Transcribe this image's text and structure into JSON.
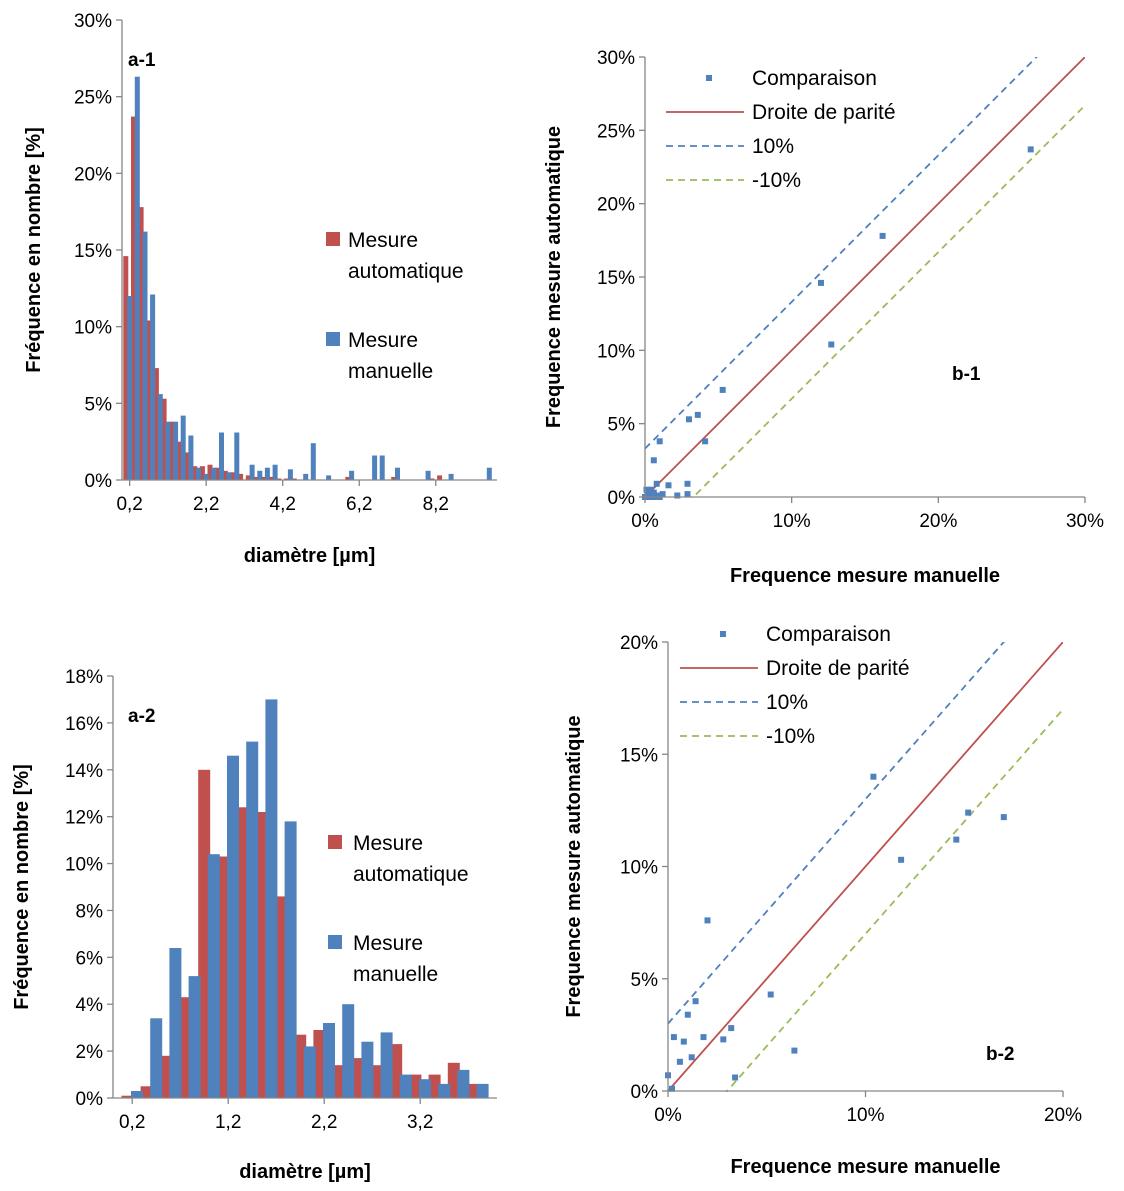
{
  "colors": {
    "automatic": "#c0504d",
    "manual": "#4f81bd",
    "parity": "#c0504d",
    "plus10": "#4f81bd",
    "minus10": "#9bbb59"
  },
  "chart_data": [
    {
      "id": "a-1",
      "type": "bar",
      "panel_label": "a-1",
      "xlabel": "diamètre [µm]",
      "ylabel": "Fréquence en nombre [%]",
      "ylim": [
        0,
        30
      ],
      "xlim": [
        0,
        9.8
      ],
      "xticks": [
        "0,2",
        "2,2",
        "4,2",
        "6,2",
        "8,2"
      ],
      "xtick_values": [
        0.2,
        2.2,
        4.2,
        6.2,
        8.2
      ],
      "yticks": [
        "0%",
        "5%",
        "10%",
        "15%",
        "20%",
        "25%",
        "30%"
      ],
      "ytick_values": [
        0,
        5,
        10,
        15,
        20,
        25,
        30
      ],
      "legend_position": "center-right",
      "series": [
        {
          "name": "Mesure automatique",
          "x": [
            0.1,
            0.3,
            0.5,
            0.7,
            0.9,
            1.1,
            1.3,
            1.5,
            1.7,
            1.9,
            2.1,
            2.3,
            2.5,
            2.7,
            2.9,
            3.1,
            3.3,
            3.5,
            3.7,
            3.9,
            4.1,
            4.3,
            4.5,
            5.9,
            7.1,
            8.1,
            8.3
          ],
          "values": [
            14.6,
            23.7,
            17.8,
            10.4,
            7.3,
            5.3,
            3.8,
            2.5,
            1.8,
            0.9,
            0.9,
            1.0,
            0.8,
            0.6,
            0.5,
            0.4,
            0.3,
            0.2,
            0.2,
            0.2,
            0.1,
            0.1,
            0.1,
            0.2,
            0.2,
            0.1,
            0.3
          ]
        },
        {
          "name": "Mesure manuelle",
          "x": [
            0.2,
            0.4,
            0.6,
            0.8,
            1.0,
            1.2,
            1.4,
            1.6,
            1.8,
            2.0,
            2.2,
            2.4,
            2.6,
            2.8,
            3.0,
            3.4,
            3.6,
            3.8,
            4.0,
            4.4,
            4.8,
            5.0,
            5.4,
            6.0,
            6.6,
            6.8,
            7.2,
            8.0,
            8.6,
            9.6
          ],
          "values": [
            12.0,
            26.3,
            16.2,
            12.1,
            5.6,
            3.8,
            3.8,
            4.2,
            2.9,
            0.8,
            0.4,
            0.8,
            3.1,
            0.5,
            3.1,
            1.0,
            0.6,
            0.8,
            1.0,
            0.7,
            0.4,
            2.4,
            0.3,
            0.6,
            1.6,
            1.6,
            0.8,
            0.6,
            0.4,
            0.8
          ]
        }
      ]
    },
    {
      "id": "b-1",
      "type": "scatter",
      "panel_label": "b-1",
      "xlabel": "Frequence mesure manuelle",
      "ylabel": "Frequence mesure automatique",
      "xlim": [
        0,
        30
      ],
      "ylim": [
        0,
        30
      ],
      "xticks": [
        "0%",
        "10%",
        "20%",
        "30%"
      ],
      "xtick_values": [
        0,
        10,
        20,
        30
      ],
      "yticks": [
        "0%",
        "5%",
        "10%",
        "15%",
        "20%",
        "25%",
        "30%"
      ],
      "ytick_values": [
        0,
        5,
        10,
        15,
        20,
        25,
        30
      ],
      "legend_position": "top-left",
      "points": {
        "name": "Comparaison",
        "x": [
          0.0,
          0.1,
          0.2,
          0.3,
          0.4,
          0.5,
          0.6,
          0.8,
          1.0,
          1.2,
          0.2,
          0.4,
          0.6,
          0.8,
          0.6,
          1.0,
          1.6,
          2.2,
          2.9,
          2.9,
          3.0,
          3.6,
          4.1,
          5.3,
          12.0,
          12.7,
          16.2,
          26.3
        ],
        "y": [
          0.0,
          0.5,
          0.0,
          0.3,
          0.5,
          0.2,
          0.0,
          0.1,
          0.0,
          0.2,
          0.4,
          0.1,
          0.3,
          0.9,
          2.5,
          3.8,
          0.8,
          0.1,
          0.2,
          0.9,
          5.3,
          5.6,
          3.8,
          7.3,
          14.6,
          10.4,
          17.8,
          23.7
        ]
      },
      "lines": [
        {
          "name": "Droite de parité",
          "intercept": 0,
          "slope": 1,
          "style": "solid"
        },
        {
          "name": "10%",
          "intercept": 3.3,
          "slope": 1,
          "style": "dashed"
        },
        {
          "name": "-10%",
          "intercept": -3.3,
          "slope": 1,
          "style": "dashed"
        }
      ]
    },
    {
      "id": "a-2",
      "type": "bar",
      "panel_label": "a-2",
      "xlabel": "diamètre [µm]",
      "ylabel": "Fréquence en nombre [%]",
      "ylim": [
        0,
        18
      ],
      "xlim": [
        0.0,
        4.0
      ],
      "xticks": [
        "0,2",
        "1,2",
        "2,2",
        "3,2"
      ],
      "xtick_values": [
        0.2,
        1.2,
        2.2,
        3.2
      ],
      "yticks": [
        "0%",
        "2%",
        "4%",
        "6%",
        "8%",
        "10%",
        "12%",
        "14%",
        "16%",
        "18%"
      ],
      "ytick_values": [
        0,
        2,
        4,
        6,
        8,
        10,
        12,
        14,
        16,
        18
      ],
      "legend_position": "center-right",
      "series": [
        {
          "name": "Mesure automatique",
          "x": [
            0.15,
            0.35,
            0.55,
            0.75,
            0.95,
            1.15,
            1.35,
            1.55,
            1.75,
            1.95,
            2.15,
            2.35,
            2.55,
            2.75,
            2.95,
            3.15,
            3.35,
            3.55,
            3.75
          ],
          "values": [
            0.1,
            0.5,
            1.8,
            4.3,
            14.0,
            10.3,
            12.4,
            12.2,
            8.6,
            2.7,
            2.9,
            1.4,
            1.7,
            1.4,
            2.3,
            1.0,
            1.0,
            1.5,
            0.6
          ]
        },
        {
          "name": "Mesure manuelle",
          "x": [
            0.05,
            0.25,
            0.45,
            0.65,
            0.85,
            1.05,
            1.25,
            1.45,
            1.65,
            1.85,
            2.05,
            2.25,
            2.45,
            2.65,
            2.85,
            3.05,
            3.25,
            3.45,
            3.65,
            3.85
          ],
          "values": [
            0.0,
            0.3,
            3.4,
            6.4,
            5.2,
            10.4,
            14.6,
            15.2,
            17.0,
            11.8,
            2.2,
            3.2,
            4.0,
            2.4,
            2.8,
            1.0,
            0.8,
            0.6,
            1.2,
            0.6
          ]
        }
      ]
    },
    {
      "id": "b-2",
      "type": "scatter",
      "panel_label": "b-2",
      "xlabel": "Frequence mesure manuelle",
      "ylabel": "Frequence mesure automatique",
      "xlim": [
        0,
        20
      ],
      "ylim": [
        0,
        20
      ],
      "xticks": [
        "0%",
        "10%",
        "20%"
      ],
      "xtick_values": [
        0,
        10,
        20
      ],
      "yticks": [
        "0%",
        "5%",
        "10%",
        "15%",
        "20%"
      ],
      "ytick_values": [
        0,
        5,
        10,
        15,
        20
      ],
      "legend_position": "top-left",
      "points": {
        "name": "Comparaison",
        "x": [
          0.0,
          0.2,
          0.3,
          0.6,
          0.8,
          1.0,
          1.2,
          1.4,
          1.8,
          2.0,
          2.8,
          3.2,
          3.4,
          5.2,
          6.4,
          10.4,
          11.8,
          14.6,
          15.2,
          17.0
        ],
        "y": [
          0.7,
          0.1,
          2.4,
          1.3,
          2.2,
          3.4,
          1.5,
          4.0,
          2.4,
          7.6,
          2.3,
          2.8,
          0.6,
          4.3,
          1.8,
          14.0,
          10.3,
          11.2,
          12.4,
          12.2
        ]
      },
      "lines": [
        {
          "name": "Droite de parité",
          "intercept": 0,
          "slope": 1,
          "style": "solid"
        },
        {
          "name": "10%",
          "intercept": 3.0,
          "slope": 1,
          "style": "dashed"
        },
        {
          "name": "-10%",
          "intercept": -3.0,
          "slope": 1,
          "style": "dashed"
        }
      ]
    }
  ]
}
